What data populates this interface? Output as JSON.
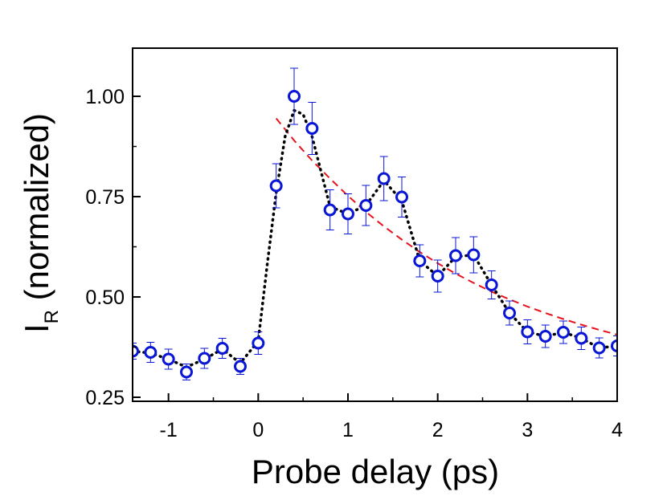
{
  "chart_data": {
    "type": "scatter",
    "xlabel": "Probe delay (ps)",
    "ylabel_main": "I",
    "ylabel_sub": "R",
    "ylabel_rest": " (normalized)",
    "xlim": [
      -1.4,
      4.0
    ],
    "ylim": [
      0.24,
      1.12
    ],
    "xticks": [
      -1,
      0,
      1,
      2,
      3,
      4
    ],
    "xtick_labels": [
      "-1",
      "0",
      "1",
      "2",
      "3",
      "4"
    ],
    "yticks": [
      0.25,
      0.5,
      0.75,
      1.0
    ],
    "ytick_labels": [
      "0.25",
      "0.50",
      "0.75",
      "1.00"
    ],
    "grid": false,
    "series": [
      {
        "kind": "markers",
        "color": "#0a16d6",
        "x": [
          -1.4,
          -1.2,
          -1.0,
          -0.8,
          -0.6,
          -0.4,
          -0.2,
          0.0,
          0.2,
          0.4,
          0.6,
          0.8,
          1.0,
          1.2,
          1.4,
          1.6,
          1.8,
          2.0,
          2.2,
          2.4,
          2.6,
          2.8,
          3.0,
          3.2,
          3.4,
          3.6,
          3.8,
          4.0
        ],
        "y": [
          0.365,
          0.362,
          0.345,
          0.313,
          0.347,
          0.372,
          0.327,
          0.385,
          0.777,
          1.0,
          0.92,
          0.717,
          0.707,
          0.728,
          0.795,
          0.749,
          0.59,
          0.552,
          0.603,
          0.605,
          0.53,
          0.46,
          0.413,
          0.402,
          0.412,
          0.397,
          0.373,
          0.378
        ],
        "err": [
          0.02,
          0.025,
          0.025,
          0.02,
          0.025,
          0.025,
          0.02,
          0.028,
          0.055,
          0.07,
          0.065,
          0.05,
          0.05,
          0.05,
          0.055,
          0.05,
          0.04,
          0.04,
          0.045,
          0.045,
          0.035,
          0.03,
          0.03,
          0.028,
          0.028,
          0.028,
          0.025,
          0.025
        ]
      },
      {
        "kind": "dotted-line",
        "color": "#000000",
        "x": [
          -1.4,
          -1.2,
          -1.0,
          -0.8,
          -0.6,
          -0.4,
          -0.2,
          0.0,
          0.1,
          0.2,
          0.3,
          0.4,
          0.5,
          0.6,
          0.8,
          1.0,
          1.2,
          1.4,
          1.6,
          1.8,
          2.0,
          2.2,
          2.4,
          2.6,
          2.8,
          3.0,
          3.2,
          3.4,
          3.6,
          3.8,
          4.0
        ],
        "y": [
          0.365,
          0.36,
          0.345,
          0.325,
          0.345,
          0.37,
          0.335,
          0.39,
          0.58,
          0.76,
          0.9,
          0.965,
          0.955,
          0.9,
          0.725,
          0.707,
          0.728,
          0.79,
          0.74,
          0.59,
          0.552,
          0.6,
          0.605,
          0.53,
          0.46,
          0.413,
          0.402,
          0.412,
          0.397,
          0.373,
          0.378
        ]
      },
      {
        "kind": "dashed-fit",
        "color": "#e8121c",
        "x": [
          0.2,
          0.4,
          0.6,
          0.8,
          1.0,
          1.2,
          1.4,
          1.6,
          1.8,
          2.0,
          2.2,
          2.4,
          2.6,
          2.8,
          3.0,
          3.2,
          3.4,
          3.6,
          3.8,
          4.0
        ],
        "y": [
          0.945,
          0.89,
          0.84,
          0.795,
          0.752,
          0.712,
          0.676,
          0.643,
          0.612,
          0.584,
          0.558,
          0.535,
          0.513,
          0.494,
          0.476,
          0.46,
          0.445,
          0.431,
          0.418,
          0.406
        ]
      }
    ]
  }
}
